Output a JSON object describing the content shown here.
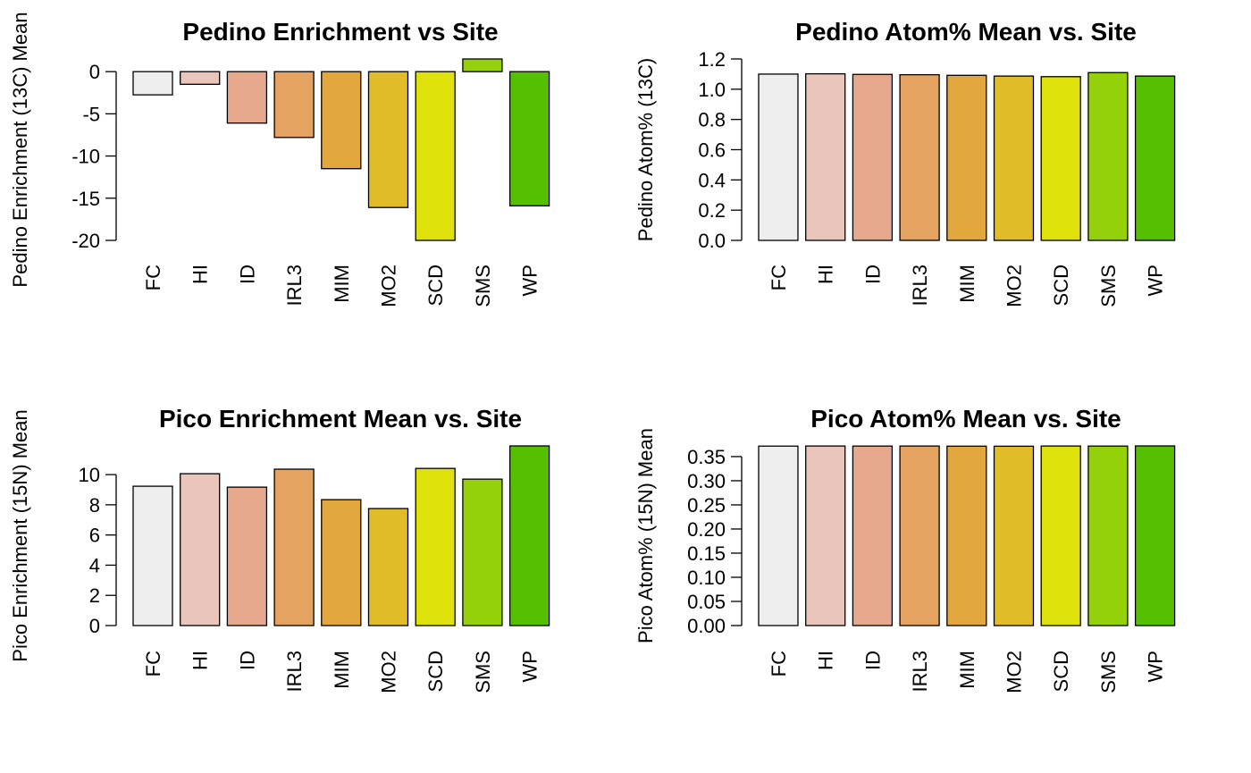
{
  "chart_data": [
    {
      "type": "bar",
      "title": "Pedino Enrichment vs Site",
      "y_label": "Pedino Enrichment (13C) Mean",
      "categories": [
        "FC",
        "HI",
        "ID",
        "IRL3",
        "MIM",
        "MO2",
        "SCD",
        "SMS",
        "WP"
      ],
      "values": [
        -2.75,
        -1.5,
        -6.1,
        -7.8,
        -11.5,
        -16.1,
        -20.0,
        1.5,
        -15.9
      ],
      "colors": [
        "#eeeeee",
        "#e9c5bb",
        "#e6a98d",
        "#e4a360",
        "#e2a83e",
        "#e0bd28",
        "#dfe20a",
        "#95d10a",
        "#55c000"
      ],
      "ylim": [
        -20,
        1.5
      ],
      "yticks": [
        -20,
        -15,
        -10,
        -5,
        0
      ]
    },
    {
      "type": "bar",
      "title": "Pedino Atom% Mean vs. Site",
      "y_label": "Pedino Atom% (13C)",
      "categories": [
        "FC",
        "HI",
        "ID",
        "IRL3",
        "MIM",
        "MO2",
        "SCD",
        "SMS",
        "WP"
      ],
      "values": [
        1.1,
        1.102,
        1.098,
        1.096,
        1.092,
        1.087,
        1.083,
        1.11,
        1.087
      ],
      "colors": [
        "#eeeeee",
        "#e9c5bb",
        "#e6a98d",
        "#e4a360",
        "#e2a83e",
        "#e0bd28",
        "#dfe20a",
        "#95d10a",
        "#55c000"
      ],
      "ylim": [
        0,
        1.2
      ],
      "yticks": [
        {
          "value": 0,
          "label": "0.0"
        },
        0.2,
        0.4,
        0.6,
        0.8,
        {
          "value": 1,
          "label": "1.0"
        },
        1.2
      ]
    },
    {
      "type": "bar",
      "title": "Pico Enrichment Mean vs. Site",
      "y_label": "Pico Enrichment (15N) Mean",
      "categories": [
        "FC",
        "HI",
        "ID",
        "IRL3",
        "MIM",
        "MO2",
        "SCD",
        "SMS",
        "WP"
      ],
      "values": [
        9.23,
        10.06,
        9.17,
        10.36,
        8.34,
        7.75,
        10.41,
        9.7,
        11.9
      ],
      "colors": [
        "#eeeeee",
        "#e9c5bb",
        "#e6a98d",
        "#e4a360",
        "#e2a83e",
        "#e0bd28",
        "#dfe20a",
        "#95d10a",
        "#55c000"
      ],
      "ylim": [
        0,
        11.9
      ],
      "yticks": [
        0,
        2,
        4,
        6,
        8,
        10
      ]
    },
    {
      "type": "bar",
      "title": "Pico Atom% Mean vs. Site",
      "y_label": "Pico Atom% (15N) Mean",
      "categories": [
        "FC",
        "HI",
        "ID",
        "IRL3",
        "MIM",
        "MO2",
        "SCD",
        "SMS",
        "WP"
      ],
      "values": [
        0.3717,
        0.3719,
        0.3718,
        0.3719,
        0.3716,
        0.3715,
        0.3719,
        0.3718,
        0.3721
      ],
      "colors": [
        "#eeeeee",
        "#e9c5bb",
        "#e6a98d",
        "#e4a360",
        "#e2a83e",
        "#e0bd28",
        "#dfe20a",
        "#95d10a",
        "#55c000"
      ],
      "ylim": [
        0,
        0.3721
      ],
      "yticks": [
        {
          "value": 0,
          "label": "0.00"
        },
        0.05,
        {
          "value": 0.1,
          "label": "0.10"
        },
        0.15,
        {
          "value": 0.2,
          "label": "0.20"
        },
        0.25,
        {
          "value": 0.3,
          "label": "0.30"
        },
        0.35
      ]
    }
  ]
}
